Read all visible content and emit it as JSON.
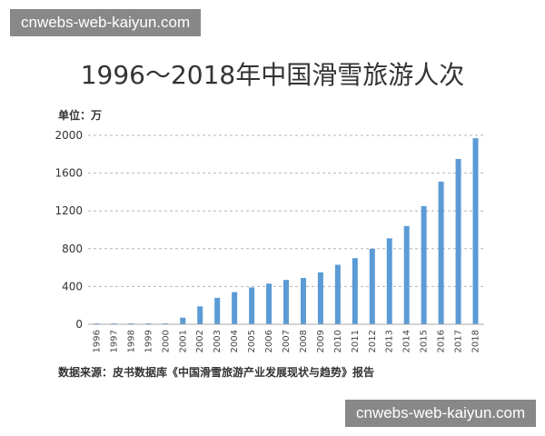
{
  "watermark": {
    "top": "cnwebs-web-kaiyun.com",
    "bottom": "cnwebs-web-kaiyun.com"
  },
  "chart_data": {
    "type": "bar",
    "title": "1996～2018年中国滑雪旅游人次",
    "unit_label": "单位：万",
    "source": "数据来源：皮书数据库《中国滑雪旅游产业发展现状与趋势》报告",
    "categories": [
      "1996",
      "1997",
      "1998",
      "1999",
      "2000",
      "2001",
      "2002",
      "2003",
      "2004",
      "2005",
      "2006",
      "2007",
      "2008",
      "2009",
      "2010",
      "2011",
      "2012",
      "2013",
      "2014",
      "2015",
      "2016",
      "2017",
      "2018"
    ],
    "values": [
      1,
      2,
      2,
      3,
      5,
      70,
      190,
      280,
      340,
      390,
      430,
      470,
      490,
      550,
      630,
      700,
      800,
      910,
      1040,
      1250,
      1510,
      1750,
      1970
    ],
    "ylim": [
      0,
      2000
    ],
    "yticks": [
      0,
      400,
      800,
      1200,
      1600,
      2000
    ],
    "grid": true,
    "bar_color": "#5b9bd5"
  }
}
